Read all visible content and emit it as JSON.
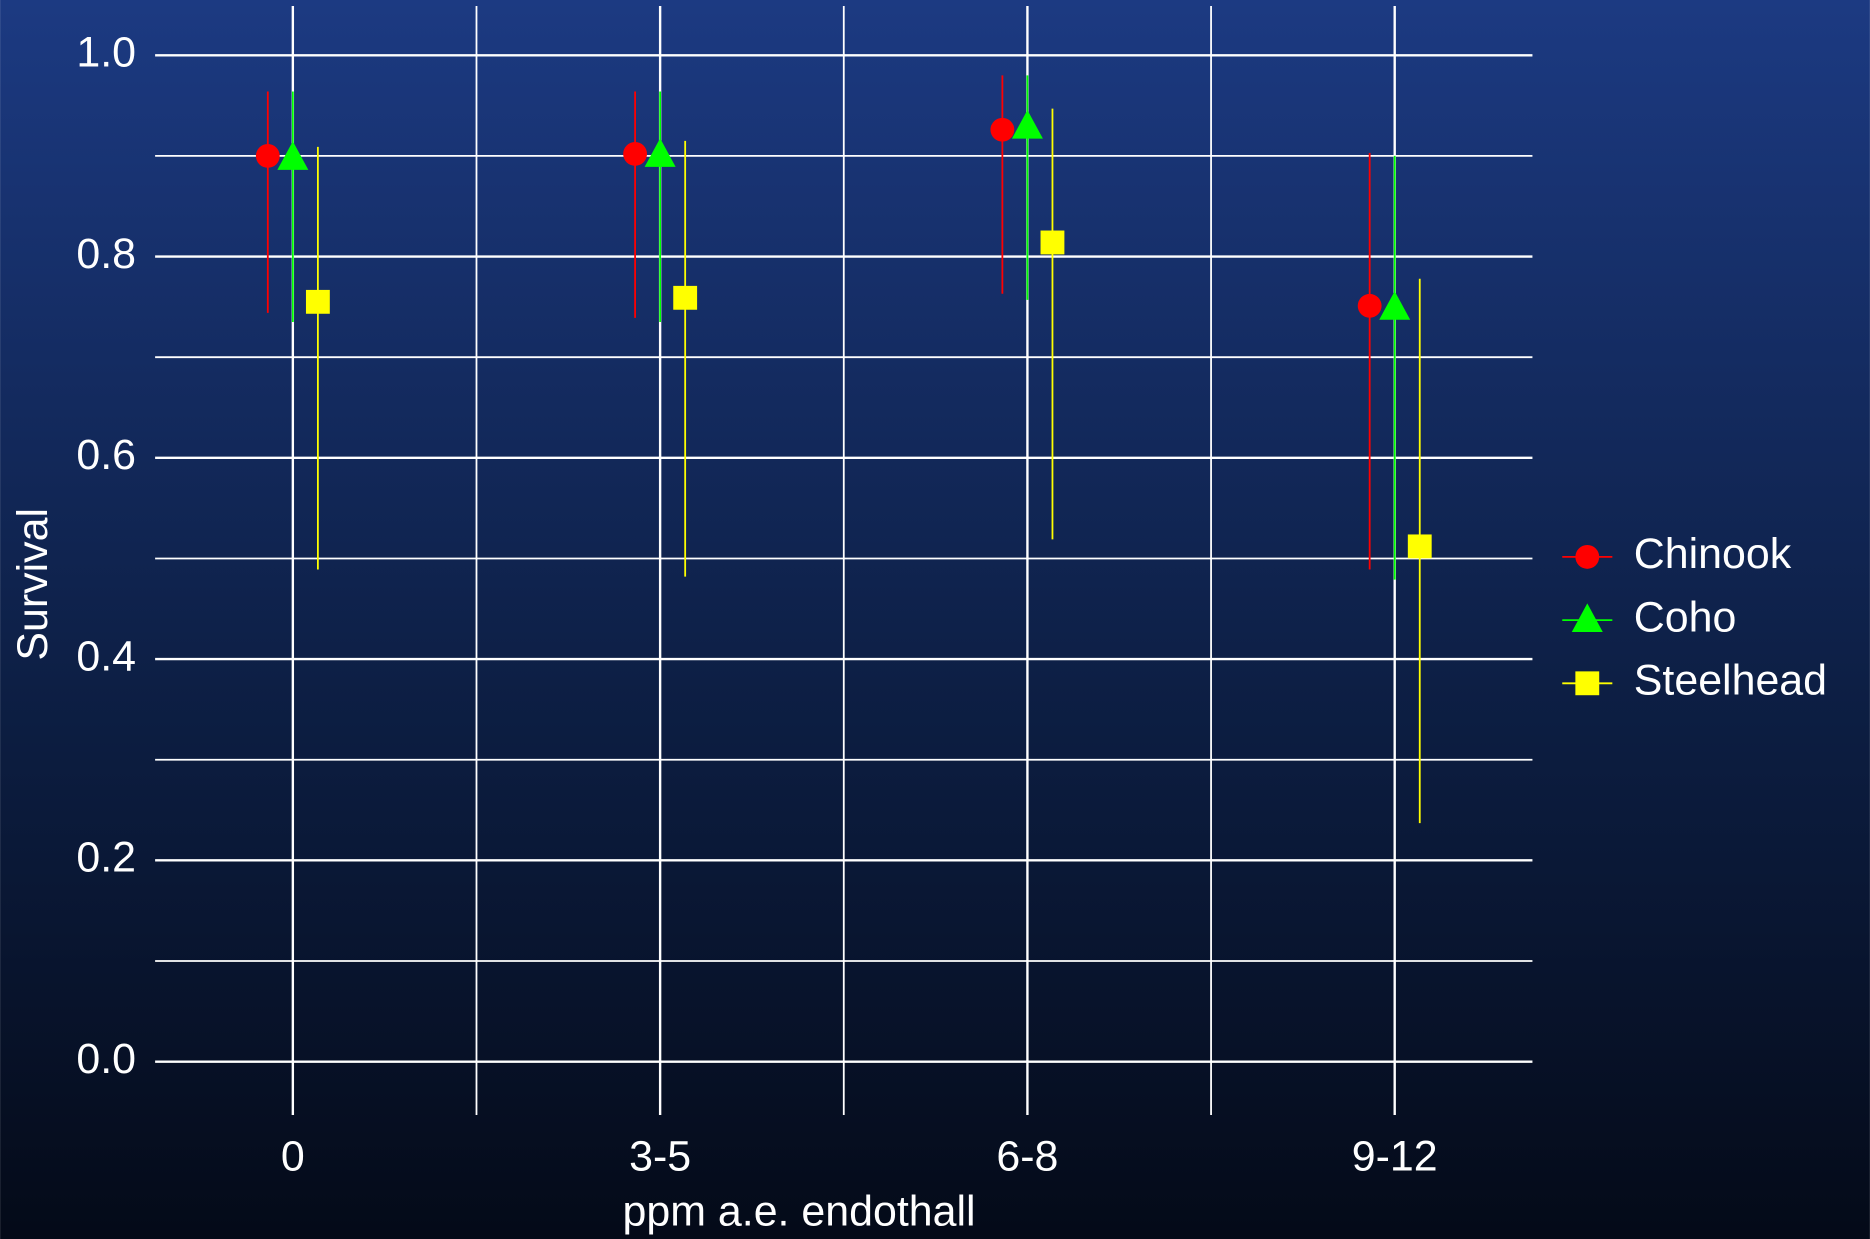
{
  "chart_data": {
    "type": "errorbar",
    "x_label": "ppm a.e. endothall",
    "y_label": "Survival",
    "categories": [
      "0",
      "3-5",
      "6-8",
      "9-12"
    ],
    "series": [
      {
        "name": "Chinook",
        "color": "#ff0000",
        "marker": "circle",
        "values": [
          0.9,
          0.902,
          0.926,
          0.751
        ],
        "lower": [
          0.744,
          0.739,
          0.763,
          0.489
        ],
        "upper": [
          0.964,
          0.964,
          0.98,
          0.903
        ]
      },
      {
        "name": "Coho",
        "color": "#00ff00",
        "marker": "triangle",
        "values": [
          0.898,
          0.901,
          0.929,
          0.749
        ],
        "lower": [
          0.735,
          0.735,
          0.757,
          0.479
        ],
        "upper": [
          0.964,
          0.964,
          0.98,
          0.9
        ]
      },
      {
        "name": "Steelhead",
        "color": "#ffff00",
        "marker": "square",
        "values": [
          0.755,
          0.759,
          0.814,
          0.512
        ],
        "lower": [
          0.489,
          0.482,
          0.519,
          0.237
        ],
        "upper": [
          0.909,
          0.915,
          0.947,
          0.778
        ]
      }
    ],
    "ylim": [
      -0.053,
      1.049
    ],
    "yticks": [
      {
        "value": 0,
        "label": "0.0"
      },
      0.2,
      0.4,
      0.6,
      0.8,
      {
        "value": 1,
        "label": "1.0"
      }
    ],
    "minor_yticks": [
      0.1,
      0.3,
      0.5,
      0.7,
      0.9
    ],
    "grid": true,
    "legend": "right"
  }
}
